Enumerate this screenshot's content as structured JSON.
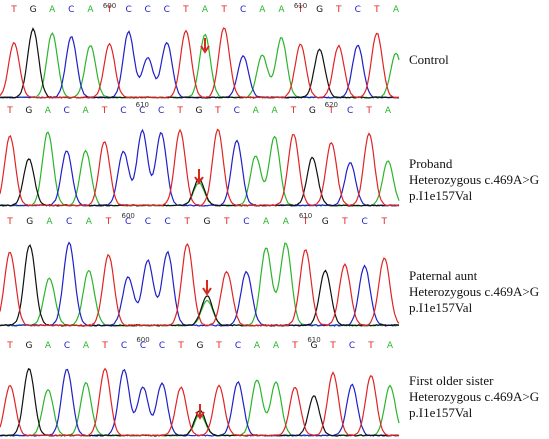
{
  "panels": [
    {
      "name": "Control",
      "sequence": "TGACATCCCTATCAATGTCTA",
      "position_marks": [
        {
          "text": "600",
          "base_index": 5
        },
        {
          "text": "610",
          "base_index": 15
        }
      ],
      "highlight_index": 10,
      "labels": [
        "Control"
      ]
    },
    {
      "name": "Proband",
      "sequence": "TGACATCCCTGTCAATGTCTA",
      "position_marks": [
        {
          "text": "610",
          "base_index": 7
        },
        {
          "text": "620",
          "base_index": 17
        }
      ],
      "highlight_index": 10,
      "labels": [
        "Proband",
        "Heterozygous c.469A>G",
        "p.I1e157Val"
      ]
    },
    {
      "name": "Paternal aunt",
      "sequence": "TGACATCCCTGTCAATGTCT",
      "position_marks": [
        {
          "text": "600",
          "base_index": 6
        },
        {
          "text": "610",
          "base_index": 15
        }
      ],
      "highlight_index": 10,
      "labels": [
        "Paternal aunt",
        "Heterozygous c.469A>G",
        "p.I1e157Val"
      ]
    },
    {
      "name": "First older sister",
      "sequence": "TGACATCCCTGTCAATGTCTA",
      "position_marks": [
        {
          "text": "600",
          "base_index": 7
        },
        {
          "text": "610",
          "base_index": 16
        }
      ],
      "highlight_index": 10,
      "labels": [
        "First older sister",
        "Heterozygous c.469A>G",
        "p.I1e157Val"
      ]
    }
  ],
  "base_colors": {
    "A": "#2bb52b",
    "C": "#2020c8",
    "G": "#111111",
    "T": "#e02424"
  },
  "arrow_color": "#d62a1e"
}
